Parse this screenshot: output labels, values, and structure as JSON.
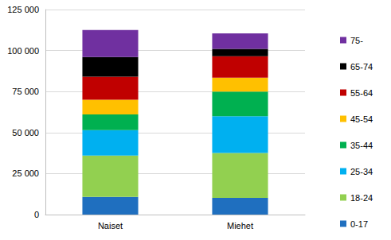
{
  "chart_data": {
    "type": "bar",
    "stacked": true,
    "grid": true,
    "legend": "right",
    "categories": [
      "Naiset",
      "Miehet"
    ],
    "series": [
      {
        "name": "0-17",
        "color": "#1f6fbf",
        "values": [
          10800,
          10200
        ]
      },
      {
        "name": "18-24",
        "color": "#92d050",
        "values": [
          25200,
          27300
        ]
      },
      {
        "name": "25-34",
        "color": "#00b0f0",
        "values": [
          15500,
          22500
        ]
      },
      {
        "name": "35-44",
        "color": "#00b050",
        "values": [
          9500,
          15000
        ]
      },
      {
        "name": "45-54",
        "color": "#ffc000",
        "values": [
          9000,
          8500
        ]
      },
      {
        "name": "55-64",
        "color": "#c00000",
        "values": [
          14000,
          13000
        ]
      },
      {
        "name": "65-74",
        "color": "#000000",
        "values": [
          12000,
          4500
        ]
      },
      {
        "name": "75-",
        "color": "#7030a0",
        "values": [
          16500,
          9500
        ]
      }
    ],
    "ylim": [
      0,
      125000
    ],
    "yticks": [
      0,
      {
        "value": 25000,
        "label": "25 000"
      },
      {
        "value": 50000,
        "label": "50 000"
      },
      {
        "value": 75000,
        "label": "75 000"
      },
      {
        "value": 100000,
        "label": "100 000"
      },
      {
        "value": 125000,
        "label": "125 000"
      }
    ]
  }
}
